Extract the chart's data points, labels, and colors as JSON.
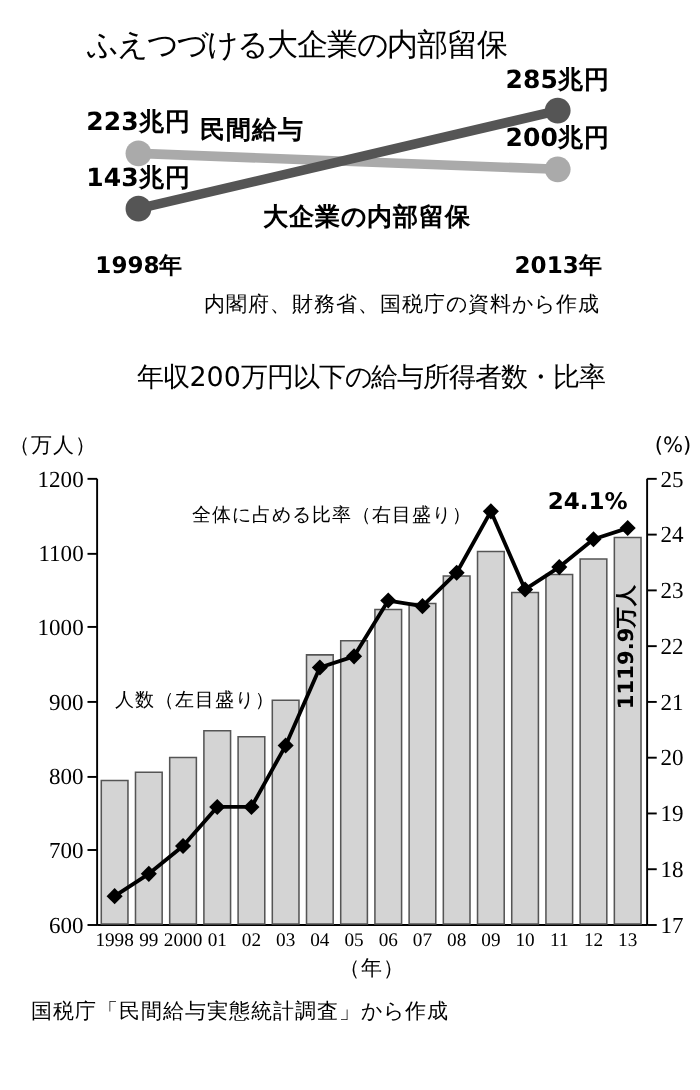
{
  "chart_data": [
    {
      "type": "line",
      "title": "ふえつづける大企業の内部留保",
      "x": [
        1998,
        2013
      ],
      "xlim": [
        1998,
        2013
      ],
      "xticks": [
        {
          "value": 1998,
          "label": "1998年"
        },
        {
          "value": 2013,
          "label": "2013年"
        }
      ],
      "tick_labels": "x",
      "marker": "circle",
      "line_style": "solid",
      "series": [
        {
          "name": "民間給与",
          "color": "#aaaaaa",
          "values": [
            223,
            200
          ],
          "value_labels": [
            "223兆円",
            "200兆円"
          ]
        },
        {
          "name": "大企業の内部留保",
          "color": "#555555",
          "values": [
            143,
            285
          ],
          "value_labels": [
            "143兆円",
            "285兆円"
          ]
        }
      ],
      "annotations": [
        "内閣府、財務省、国税庁の資料から作成"
      ]
    },
    {
      "type": "bar",
      "title": "年収200万円以下の給与所得者数・比率",
      "categories": [
        "1998",
        "99",
        "2000",
        "01",
        "02",
        "03",
        "04",
        "05",
        "06",
        "07",
        "08",
        "09",
        "10",
        "11",
        "12",
        "13"
      ],
      "xlabel": "（年）",
      "ylabel": "（万人）",
      "y2label": "(%)",
      "ylim": [
        600,
        1200
      ],
      "yticks": [
        600,
        700,
        800,
        900,
        1000,
        1100,
        1200
      ],
      "y2lim": [
        17,
        25
      ],
      "y2ticks": [
        17,
        18,
        19,
        20,
        21,
        22,
        23,
        24,
        25
      ],
      "series": [
        {
          "name": "人数（左目盛り）",
          "color": "#d4d4d4",
          "values": [
            793,
            804,
            824,
            860,
            852,
            901,
            962,
            981,
            1023,
            1031,
            1068,
            1101,
            1046,
            1070,
            1091,
            1119.9
          ],
          "value_labels": [
            null,
            null,
            null,
            null,
            null,
            null,
            null,
            null,
            null,
            null,
            null,
            null,
            null,
            null,
            null,
            "1119.9万人"
          ]
        },
        {
          "name": "全体に占める比率（右目盛り）",
          "type": "line",
          "line_style": "solid",
          "axis": "y2",
          "color": "#000000",
          "marker": "diamond",
          "values": [
            17.5,
            17.9,
            18.4,
            19.1,
            19.1,
            20.2,
            21.6,
            21.8,
            22.8,
            22.7,
            23.3,
            24.4,
            23.0,
            23.4,
            23.9,
            24.1
          ],
          "value_labels": [
            null,
            null,
            null,
            null,
            null,
            null,
            null,
            null,
            null,
            null,
            null,
            null,
            null,
            null,
            null,
            "24.1%"
          ]
        }
      ],
      "annotations": [
        "国税庁「民間給与実態統計調査」から作成"
      ]
    }
  ]
}
